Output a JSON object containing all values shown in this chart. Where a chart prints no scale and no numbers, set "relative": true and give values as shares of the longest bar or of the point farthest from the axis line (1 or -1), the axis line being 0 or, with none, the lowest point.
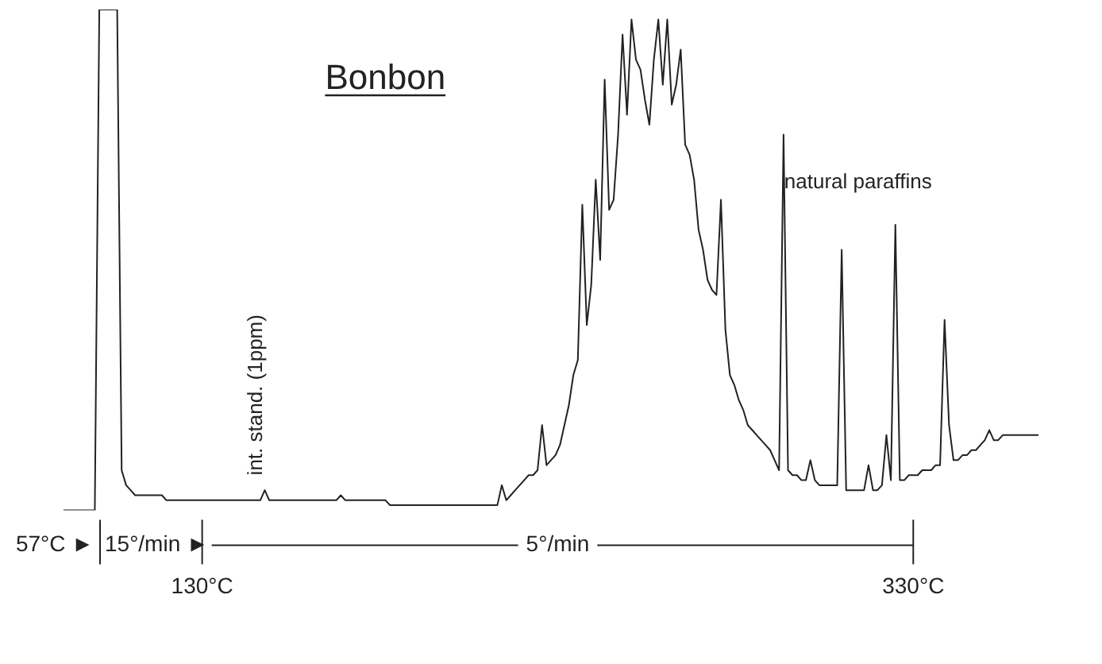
{
  "chart_data": {
    "type": "line",
    "title": "Bonbon",
    "relative": true,
    "color": "#222222",
    "categories": [
      null,
      null,
      null,
      null,
      null,
      null,
      null,
      null,
      null,
      null,
      null,
      null,
      null,
      null,
      null,
      null,
      null,
      null,
      null,
      null,
      null,
      null,
      null,
      null,
      null,
      null,
      null,
      null,
      null,
      null,
      null,
      "130°C",
      null,
      null,
      null,
      null,
      null,
      null,
      null,
      null,
      null,
      null,
      null,
      null,
      null,
      null,
      null,
      null,
      null,
      null,
      null,
      null,
      null,
      null,
      null,
      null,
      null,
      null,
      null,
      null,
      null,
      null,
      null,
      null,
      null,
      null,
      null,
      null,
      null,
      null,
      null,
      null,
      null,
      null,
      null,
      null,
      null,
      null,
      null,
      null,
      null,
      null,
      null,
      null,
      null,
      null,
      null,
      null,
      null,
      null,
      null,
      null,
      null,
      null,
      null,
      null,
      null,
      null,
      null,
      null,
      null,
      null,
      null,
      null,
      null,
      null,
      null,
      null,
      null,
      null,
      null,
      null,
      null,
      null,
      null,
      null,
      null,
      null,
      null,
      null,
      null,
      null,
      null,
      null,
      null,
      null,
      null,
      null,
      null,
      null,
      null,
      null,
      null,
      null,
      null,
      null,
      null,
      null,
      null,
      null,
      null,
      null,
      null,
      null,
      null,
      null,
      null,
      null,
      null,
      null,
      null,
      null,
      null,
      null,
      null,
      null,
      null,
      null,
      null,
      null,
      null,
      null,
      null,
      null,
      null,
      null,
      null,
      null,
      null,
      null,
      null,
      null,
      null,
      null,
      null,
      null,
      null,
      null,
      null,
      null,
      null,
      null,
      null,
      null,
      null,
      null,
      null,
      null,
      null,
      null,
      "330°C",
      null,
      null,
      null,
      null,
      null,
      null,
      null,
      null,
      null,
      null,
      null,
      null,
      null,
      null,
      null,
      null,
      null,
      null,
      null,
      null,
      null,
      null,
      null,
      null,
      null,
      null,
      null,
      null
    ],
    "values": [
      0,
      0,
      0,
      0,
      0,
      0,
      0,
      0,
      1,
      1,
      1,
      1,
      1,
      0.08,
      0.05,
      0.04,
      0.03,
      0.03,
      0.03,
      0.03,
      0.03,
      0.03,
      0.03,
      0.02,
      0.02,
      0.02,
      0.02,
      0.02,
      0.02,
      0.02,
      0.02,
      0.02,
      0.02,
      0.02,
      0.02,
      0.02,
      0.02,
      0.02,
      0.02,
      0.02,
      0.02,
      0.02,
      0.02,
      0.02,
      0.02,
      0.04,
      0.02,
      0.02,
      0.02,
      0.02,
      0.02,
      0.02,
      0.02,
      0.02,
      0.02,
      0.02,
      0.02,
      0.02,
      0.02,
      0.02,
      0.02,
      0.02,
      0.03,
      0.02,
      0.02,
      0.02,
      0.02,
      0.02,
      0.02,
      0.02,
      0.02,
      0.02,
      0.02,
      0.01,
      0.01,
      0.01,
      0.01,
      0.01,
      0.01,
      0.01,
      0.01,
      0.01,
      0.01,
      0.01,
      0.01,
      0.01,
      0.01,
      0.01,
      0.01,
      0.01,
      0.01,
      0.01,
      0.01,
      0.01,
      0.01,
      0.01,
      0.01,
      0.01,
      0.05,
      0.02,
      0.03,
      0.04,
      0.05,
      0.06,
      0.07,
      0.07,
      0.08,
      0.17,
      0.09,
      0.1,
      0.11,
      0.13,
      0.17,
      0.21,
      0.27,
      0.3,
      0.61,
      0.37,
      0.45,
      0.66,
      0.5,
      0.86,
      0.6,
      0.62,
      0.75,
      0.95,
      0.79,
      0.98,
      0.9,
      0.88,
      0.82,
      0.77,
      0.9,
      0.98,
      0.85,
      0.98,
      0.81,
      0.85,
      0.92,
      0.73,
      0.71,
      0.66,
      0.56,
      0.52,
      0.46,
      0.44,
      0.43,
      0.62,
      0.36,
      0.27,
      0.25,
      0.22,
      0.2,
      0.17,
      0.16,
      0.15,
      0.14,
      0.13,
      0.12,
      0.1,
      0.08,
      0.75,
      0.08,
      0.07,
      0.07,
      0.06,
      0.06,
      0.1,
      0.06,
      0.05,
      0.05,
      0.05,
      0.05,
      0.05,
      0.52,
      0.04,
      0.04,
      0.04,
      0.04,
      0.04,
      0.09,
      0.04,
      0.04,
      0.05,
      0.15,
      0.06,
      0.57,
      0.06,
      0.06,
      0.07,
      0.07,
      0.07,
      0.08,
      0.08,
      0.08,
      0.09,
      0.09,
      0.38,
      0.17,
      0.1,
      0.1,
      0.11,
      0.11,
      0.12,
      0.12,
      0.13,
      0.14,
      0.16,
      0.14,
      0.14,
      0.15,
      0.15,
      0.15,
      0.15,
      0.15,
      0.15,
      0.15,
      0.15,
      0.15
    ],
    "annotations": [
      "57°C ►",
      "15°/min ►",
      "5°/min",
      "int. stand. (1ppm)",
      "natural paraffins"
    ]
  }
}
